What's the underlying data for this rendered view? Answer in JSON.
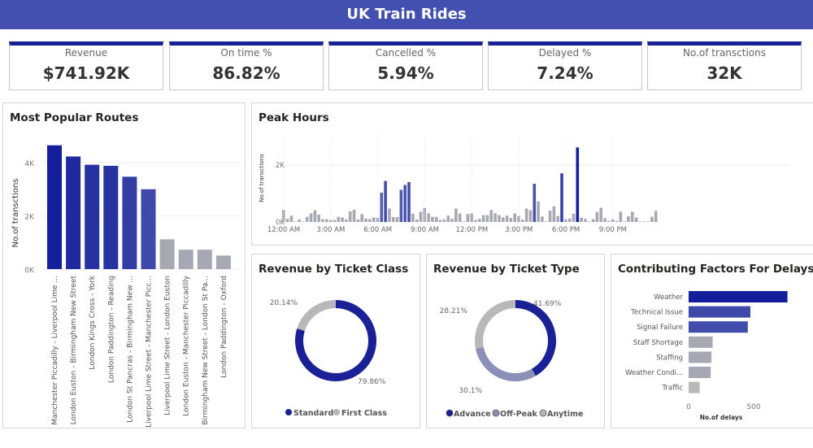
{
  "header": {
    "title": "UK Train Rides"
  },
  "kpis": [
    {
      "label": "Revenue",
      "value": "$741.92K"
    },
    {
      "label": "On time %",
      "value": "86.82%"
    },
    {
      "label": "Cancelled %",
      "value": "5.94%"
    },
    {
      "label": "Delayed %",
      "value": "7.24%"
    },
    {
      "label": "No.of transctions",
      "value": "32K"
    }
  ],
  "colors": {
    "accent": "#1a2196",
    "header": "#4350af",
    "grey": "#a8a8b4",
    "offpeak": "#8c8fb8",
    "anytime": "#b8b8b8"
  },
  "chart_data": [
    {
      "id": "routes",
      "type": "bar",
      "title": "Most Popular Routes",
      "ylabel": "No.of transctions",
      "yticks": [
        "0K",
        "2K",
        "4K"
      ],
      "ylim": [
        0,
        4800
      ],
      "categories": [
        "Manchester Piccadilly - Liverpool Lime ...",
        "London Euston - Birmingham New Street",
        "London Kings Cross - York",
        "London Paddington - Reading",
        "London St Pancras - Birmingham New ...",
        "Liverpool Lime Street - Manchester Picc...",
        "Liverpool Lime Street - London Euston",
        "London Euston - Manchester Piccadilly",
        "Birmingham New Street - London St Pa...",
        "London Paddington - Oxford"
      ],
      "values": [
        4650,
        4230,
        3920,
        3880,
        3470,
        3000,
        1120,
        730,
        730,
        510
      ]
    },
    {
      "id": "peak",
      "type": "bar",
      "title": "Peak Hours",
      "ylabel": "No.of transctions",
      "yticks": [
        "0K",
        "2K"
      ],
      "xticks": [
        "12:00 AM",
        "3:00 AM",
        "6:00 AM",
        "9:00 AM",
        "12:00 PM",
        "3:00 PM",
        "6:00 PM",
        "9:00 PM"
      ],
      "x_interval_minutes": 15,
      "values": [
        430,
        110,
        220,
        20,
        90,
        20,
        180,
        300,
        410,
        260,
        100,
        100,
        70,
        70,
        180,
        160,
        90,
        370,
        430,
        90,
        280,
        120,
        100,
        160,
        140,
        1030,
        1440,
        470,
        170,
        170,
        1130,
        1300,
        1400,
        290,
        90,
        360,
        500,
        300,
        180,
        180,
        70,
        90,
        220,
        110,
        470,
        300,
        20,
        280,
        300,
        70,
        110,
        240,
        240,
        420,
        310,
        240,
        160,
        220,
        140,
        300,
        210,
        80,
        470,
        410,
        1340,
        720,
        190,
        20,
        400,
        550,
        210,
        1710,
        100,
        120,
        290,
        2620,
        150,
        110,
        20,
        100,
        350,
        500,
        130,
        40,
        100,
        40,
        360,
        20,
        200,
        360,
        160,
        20,
        20,
        20,
        180,
        390
      ]
    },
    {
      "id": "class",
      "type": "pie",
      "title": "Revenue by Ticket Class",
      "categories": [
        "Standard",
        "First Class"
      ],
      "values": [
        79.86,
        20.14
      ],
      "labels": [
        "79.86%",
        "20.14%"
      ]
    },
    {
      "id": "type",
      "type": "pie",
      "title": "Revenue by Ticket Type",
      "categories": [
        "Advance",
        "Off-Peak",
        "Anytime"
      ],
      "values": [
        41.69,
        30.1,
        28.21
      ],
      "labels": [
        "41.69%",
        "30.1%",
        "28.21%"
      ]
    },
    {
      "id": "delays",
      "type": "bar",
      "orientation": "horizontal",
      "title": "Contributing Factors For Delays",
      "xlabel": "No.of delays",
      "xticks": [
        "0",
        "500"
      ],
      "categories": [
        "Weather",
        "Technical Issue",
        "Signal Failure",
        "Staff Shortage",
        "Staffing",
        "Weather Condi...",
        "Traffic"
      ],
      "values": [
        760,
        475,
        455,
        185,
        175,
        170,
        85
      ]
    }
  ]
}
